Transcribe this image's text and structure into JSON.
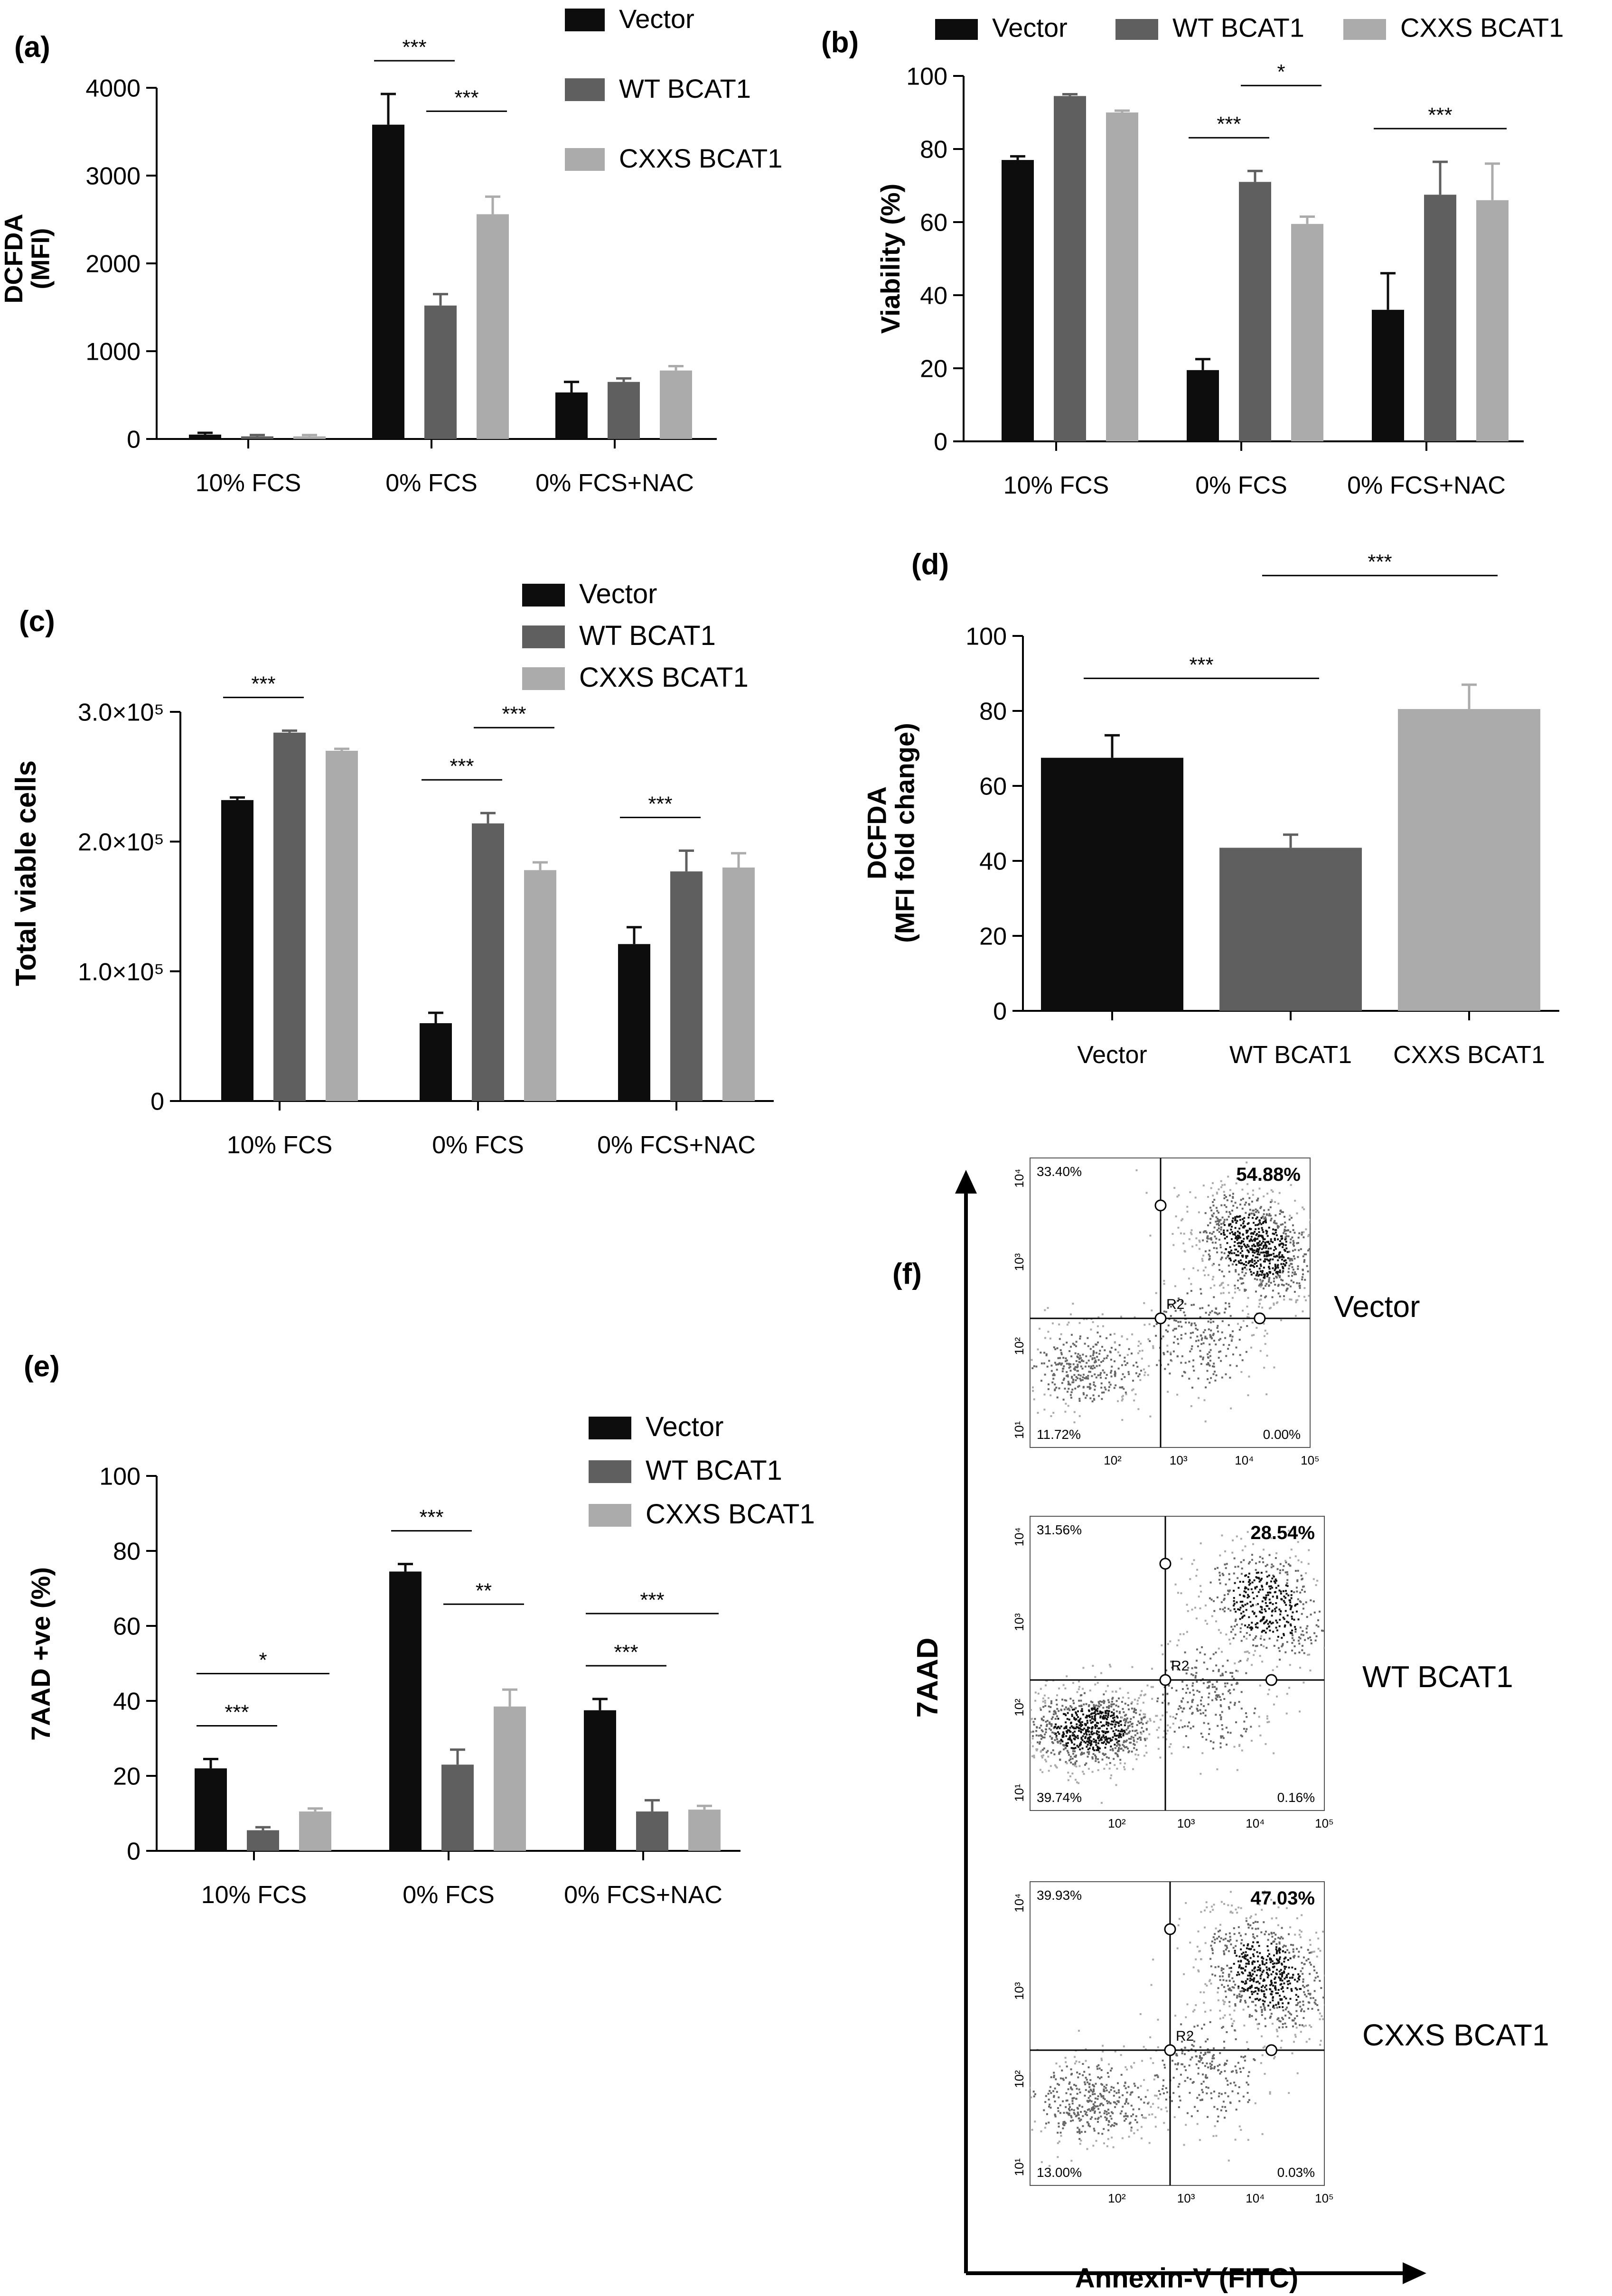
{
  "palette": {
    "vector": "#0d0d0d",
    "wt": "#5f5f5f",
    "cxxs": "#ababab",
    "axis": "#000000"
  },
  "chart_data": [
    {
      "id": "a",
      "panel_label": "(a)",
      "type": "bar",
      "ylabel_lines": [
        "DCFDA",
        "(MFI)"
      ],
      "categories": [
        "10% FCS",
        "0% FCS",
        "0% FCS+NAC"
      ],
      "ylim": [
        0,
        4000
      ],
      "yticks": [
        0,
        1000,
        2000,
        3000,
        4000
      ],
      "ytick_labels": [
        "0",
        "1000",
        "2000",
        "3000",
        "4000"
      ],
      "series": [
        {
          "name": "Vector",
          "color": "#0d0d0d",
          "values": [
            50,
            3580,
            530
          ],
          "errors": [
            20,
            350,
            120
          ]
        },
        {
          "name": "WT BCAT1",
          "color": "#5f5f5f",
          "values": [
            30,
            1520,
            650
          ],
          "errors": [
            15,
            130,
            40
          ]
        },
        {
          "name": "CXXS BCAT1",
          "color": "#ababab",
          "values": [
            30,
            2560,
            780
          ],
          "errors": [
            15,
            200,
            50
          ]
        }
      ],
      "significance": [
        {
          "group": 1,
          "from": 0,
          "to": 1,
          "label": "***"
        },
        {
          "group": 1,
          "from": 1,
          "to": 2,
          "label": "***"
        }
      ]
    },
    {
      "id": "b",
      "panel_label": "(b)",
      "type": "bar",
      "ylabel_lines": [
        "Viability (%)"
      ],
      "categories": [
        "10% FCS",
        "0% FCS",
        "0% FCS+NAC"
      ],
      "ylim": [
        0,
        100
      ],
      "yticks": [
        0,
        20,
        40,
        60,
        80,
        100
      ],
      "ytick_labels": [
        "0",
        "20",
        "40",
        "60",
        "80",
        "100"
      ],
      "series": [
        {
          "name": "Vector",
          "color": "#0d0d0d",
          "values": [
            77,
            19.5,
            36
          ],
          "errors": [
            1,
            3,
            10
          ]
        },
        {
          "name": "WT BCAT1",
          "color": "#5f5f5f",
          "values": [
            94.5,
            71,
            67.5
          ],
          "errors": [
            0.5,
            3,
            9
          ]
        },
        {
          "name": "CXXS BCAT1",
          "color": "#ababab",
          "values": [
            90,
            59.5,
            66
          ],
          "errors": [
            0.5,
            2,
            10
          ]
        }
      ],
      "significance": [
        {
          "group": 1,
          "from": 0,
          "to": 1,
          "label": "***"
        },
        {
          "group": 1,
          "from": 1,
          "to": 2,
          "label": "*"
        },
        {
          "group": 2,
          "from": 0,
          "to": 2,
          "label": "***"
        }
      ]
    },
    {
      "id": "c",
      "panel_label": "(c)",
      "type": "bar",
      "ylabel_lines": [
        "Total viable cells"
      ],
      "categories": [
        "10% FCS",
        "0% FCS",
        "0% FCS+NAC"
      ],
      "ylim": [
        0,
        300000
      ],
      "yticks": [
        0,
        100000,
        200000,
        300000
      ],
      "ytick_labels": [
        "0",
        "1.0×10⁵",
        "2.0×10⁵",
        "3.0×10⁵"
      ],
      "series": [
        {
          "name": "Vector",
          "color": "#0d0d0d",
          "values": [
            232000,
            60000,
            121000
          ],
          "errors": [
            2000,
            8000,
            13000
          ]
        },
        {
          "name": "WT BCAT1",
          "color": "#5f5f5f",
          "values": [
            284000,
            214000,
            177000
          ],
          "errors": [
            1500,
            8000,
            16000
          ]
        },
        {
          "name": "CXXS BCAT1",
          "color": "#ababab",
          "values": [
            270000,
            178000,
            180000
          ],
          "errors": [
            1500,
            6000,
            11000
          ]
        }
      ],
      "significance": [
        {
          "group": 0,
          "from": 0,
          "to": 1,
          "label": "***"
        },
        {
          "group": 1,
          "from": 0,
          "to": 1,
          "label": "***"
        },
        {
          "group": 1,
          "from": 1,
          "to": 2,
          "label": "***"
        },
        {
          "group": 2,
          "from": 0,
          "to": 1,
          "label": "***"
        }
      ]
    },
    {
      "id": "d",
      "panel_label": "(d)",
      "type": "bar",
      "ylabel_lines": [
        "DCFDA",
        "(MFI fold change)"
      ],
      "categories": [
        "Vector",
        "WT BCAT1",
        "CXXS BCAT1"
      ],
      "ylim": [
        0,
        100
      ],
      "yticks": [
        0,
        20,
        40,
        60,
        80,
        100
      ],
      "ytick_labels": [
        "0",
        "20",
        "40",
        "60",
        "80",
        "100"
      ],
      "values": [
        67.5,
        43.5,
        80.5
      ],
      "errors": [
        6,
        3.5,
        6.5
      ],
      "colors": [
        "#0d0d0d",
        "#5f5f5f",
        "#ababab"
      ],
      "significance": [
        {
          "from": 0,
          "to": 1,
          "label": "***"
        },
        {
          "from": 1,
          "to": 2,
          "label": "***"
        }
      ]
    },
    {
      "id": "e",
      "panel_label": "(e)",
      "type": "bar",
      "ylabel_lines": [
        "7AAD +ve (%)"
      ],
      "categories": [
        "10% FCS",
        "0% FCS",
        "0% FCS+NAC"
      ],
      "ylim": [
        0,
        100
      ],
      "yticks": [
        0,
        20,
        40,
        60,
        80,
        100
      ],
      "ytick_labels": [
        "0",
        "20",
        "40",
        "60",
        "80",
        "100"
      ],
      "series": [
        {
          "name": "Vector",
          "color": "#0d0d0d",
          "values": [
            22,
            74.5,
            37.5
          ],
          "errors": [
            2.5,
            2,
            3
          ]
        },
        {
          "name": "WT BCAT1",
          "color": "#5f5f5f",
          "values": [
            5.5,
            23,
            10.5
          ],
          "errors": [
            0.8,
            4,
            3
          ]
        },
        {
          "name": "CXXS BCAT1",
          "color": "#ababab",
          "values": [
            10.5,
            38.5,
            11
          ],
          "errors": [
            0.8,
            4.5,
            1
          ]
        }
      ],
      "significance": [
        {
          "group": 0,
          "from": 0,
          "to": 1,
          "label": "***"
        },
        {
          "group": 0,
          "from": 0,
          "to": 2,
          "label": "*"
        },
        {
          "group": 1,
          "from": 0,
          "to": 1,
          "label": "***"
        },
        {
          "group": 1,
          "from": 1,
          "to": 2,
          "label": "**"
        },
        {
          "group": 2,
          "from": 0,
          "to": 1,
          "label": "***"
        },
        {
          "group": 2,
          "from": 0,
          "to": 2,
          "label": "***"
        }
      ]
    },
    {
      "id": "f",
      "panel_label": "(f)",
      "type": "scatter",
      "ylabel": "7AAD",
      "xlabel": "Annexin-V (FITC)",
      "gate_label": "R2",
      "axis_ticks": [
        "10¹",
        "10²",
        "10³",
        "10⁴",
        "10⁵"
      ],
      "plots": [
        {
          "name": "Vector",
          "quadrants": {
            "ul": "33.40%",
            "ur": "54.88%",
            "ll": "11.72%",
            "lr": "0.00%"
          }
        },
        {
          "name": "WT BCAT1",
          "quadrants": {
            "ul": "31.56%",
            "ur": "28.54%",
            "ll": "39.74%",
            "lr": "0.16%"
          }
        },
        {
          "name": "CXXS BCAT1",
          "quadrants": {
            "ul": "39.93%",
            "ur": "47.03%",
            "ll": "13.00%",
            "lr": "0.03%"
          }
        }
      ]
    }
  ]
}
